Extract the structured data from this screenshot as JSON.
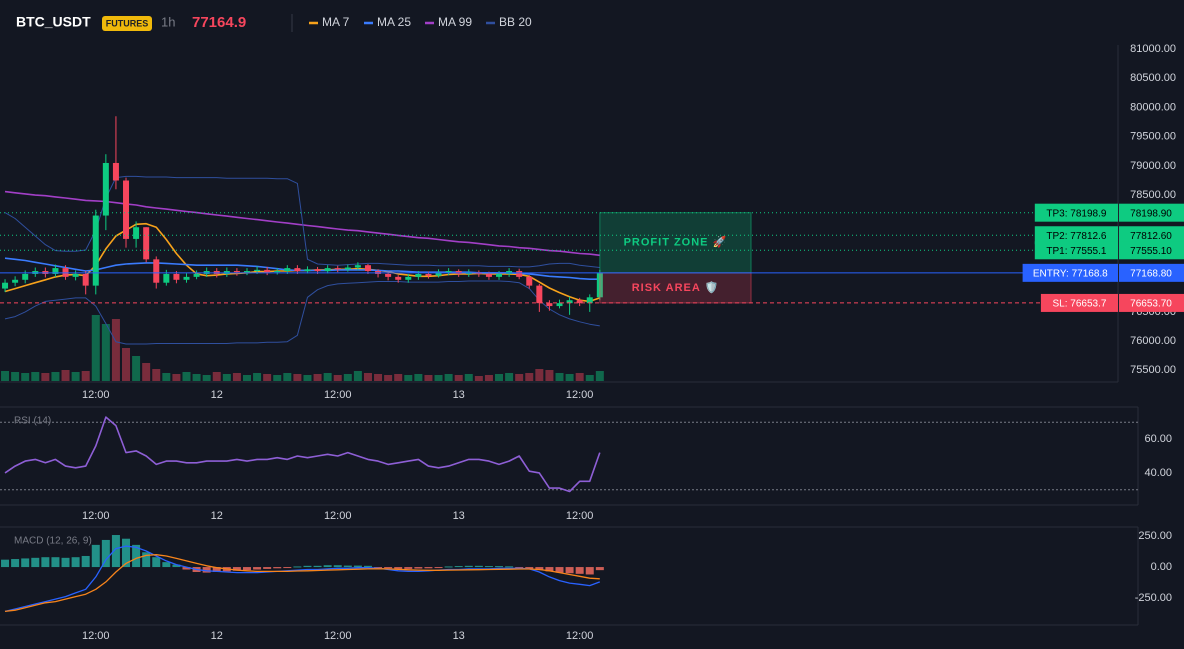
{
  "header": {
    "symbol": "BTC_USDT",
    "badge": "FUTURES",
    "interval": "1h",
    "price": "77164.9"
  },
  "chart_data": [
    {
      "type": "candlestick",
      "up_color": "#0ecb81",
      "down_color": "#f6465d",
      "xlim": [
        -0.5,
        110.4
      ],
      "xticks": [
        {
          "value": 9,
          "label": "12:00"
        },
        {
          "value": 21,
          "label": "12"
        },
        {
          "value": 33,
          "label": "12:00"
        },
        {
          "value": 45,
          "label": "13"
        },
        {
          "value": 57,
          "label": "12:00"
        }
      ],
      "ylim": [
        75300,
        81070
      ],
      "yticks": [
        {
          "value": 75500,
          "label": "75500.00"
        },
        {
          "value": 76000,
          "label": "76000.00"
        },
        {
          "value": 76500,
          "label": "76500.00"
        },
        {
          "value": 78500,
          "label": "78500.00"
        },
        {
          "value": 79000,
          "label": "79000.00"
        },
        {
          "value": 79500,
          "label": "79500.00"
        },
        {
          "value": 80000,
          "label": "80000.00"
        },
        {
          "value": 80500,
          "label": "80500.00"
        },
        {
          "value": 81000,
          "label": "81000.00"
        }
      ],
      "open": [
        76900,
        77000,
        77050,
        77150,
        77200,
        77150,
        77250,
        77100,
        77150,
        76950,
        78150,
        79050,
        78750,
        77750,
        77950,
        77400,
        77000,
        77150,
        77050,
        77100,
        77150,
        77200,
        77150,
        77200,
        77180,
        77200,
        77220,
        77180,
        77200,
        77250,
        77200,
        77230,
        77200,
        77250,
        77230,
        77260,
        77300,
        77200,
        77150,
        77100,
        77050,
        77100,
        77150,
        77120,
        77180,
        77200,
        77150,
        77180,
        77150,
        77100,
        77150,
        77200,
        77100,
        76950,
        76650,
        76600,
        76650,
        76700,
        76650,
        76750
      ],
      "high": [
        77060,
        77110,
        77210,
        77260,
        77260,
        77310,
        77300,
        77210,
        77200,
        78250,
        79200,
        79850,
        78800,
        78050,
        77950,
        77450,
        77220,
        77200,
        77160,
        77210,
        77260,
        77250,
        77260,
        77250,
        77250,
        77280,
        77270,
        77250,
        77300,
        77300,
        77280,
        77270,
        77300,
        77290,
        77310,
        77350,
        77320,
        77230,
        77180,
        77130,
        77150,
        77200,
        77190,
        77230,
        77250,
        77230,
        77230,
        77210,
        77190,
        77200,
        77250,
        77240,
        77130,
        76980,
        76700,
        76710,
        76760,
        76740,
        76800,
        77220
      ],
      "low": [
        76840,
        76940,
        76990,
        77100,
        77090,
        77100,
        77050,
        77040,
        76800,
        76800,
        77900,
        78600,
        77600,
        77600,
        77350,
        76900,
        76950,
        76990,
        77000,
        77060,
        77100,
        77090,
        77100,
        77120,
        77130,
        77150,
        77130,
        77140,
        77150,
        77150,
        77160,
        77150,
        77160,
        77180,
        77190,
        77210,
        77150,
        77090,
        77040,
        77000,
        77000,
        77050,
        77070,
        77090,
        77130,
        77100,
        77100,
        77100,
        77050,
        77050,
        77100,
        77060,
        76900,
        76500,
        76520,
        76560,
        76450,
        76600,
        76500,
        76700
      ],
      "close": [
        77000,
        77050,
        77150,
        77200,
        77150,
        77250,
        77100,
        77150,
        76950,
        78150,
        79050,
        78750,
        77750,
        77950,
        77400,
        77000,
        77150,
        77050,
        77100,
        77150,
        77200,
        77150,
        77200,
        77180,
        77200,
        77220,
        77180,
        77200,
        77250,
        77200,
        77230,
        77200,
        77250,
        77230,
        77260,
        77300,
        77200,
        77150,
        77100,
        77050,
        77100,
        77150,
        77120,
        77180,
        77200,
        77150,
        77180,
        77150,
        77100,
        77150,
        77200,
        77100,
        76950,
        76650,
        76600,
        76650,
        76700,
        76650,
        76750,
        77164.9
      ],
      "volume": [
        10,
        9,
        8,
        9,
        8,
        9,
        11,
        9,
        10,
        66,
        57,
        62,
        33,
        25,
        18,
        12,
        8,
        7,
        9,
        7,
        6,
        9,
        7,
        8,
        6,
        8,
        7,
        6,
        8,
        7,
        6,
        7,
        8,
        6,
        7,
        10,
        8,
        7,
        6,
        7,
        6,
        7,
        6,
        6,
        7,
        6,
        7,
        5,
        6,
        7,
        8,
        7,
        8,
        12,
        11,
        8,
        7,
        8,
        6,
        10
      ],
      "series": [
        {
          "name": "MA 7",
          "color": "#f7a21b",
          "values": [
            76850,
            76900,
            76950,
            77000,
            77050,
            77100,
            77130,
            77140,
            77120,
            77300,
            77580,
            77800,
            77900,
            78000,
            78010,
            77950,
            77740,
            77500,
            77300,
            77150,
            77120,
            77130,
            77150,
            77160,
            77170,
            77190,
            77190,
            77200,
            77200,
            77210,
            77210,
            77220,
            77220,
            77230,
            77230,
            77240,
            77230,
            77210,
            77190,
            77150,
            77130,
            77110,
            77110,
            77120,
            77140,
            77150,
            77150,
            77160,
            77150,
            77150,
            77150,
            77140,
            77110,
            77010,
            76910,
            76830,
            76760,
            76700,
            76680,
            76740
          ]
        },
        {
          "name": "MA 25",
          "color": "#3a7bfd",
          "values": [
            77420,
            77400,
            77380,
            77350,
            77320,
            77290,
            77260,
            77230,
            77200,
            77220,
            77260,
            77300,
            77320,
            77330,
            77340,
            77340,
            77330,
            77320,
            77310,
            77300,
            77300,
            77300,
            77300,
            77300,
            77290,
            77280,
            77260,
            77240,
            77220,
            77210,
            77210,
            77210,
            77210,
            77220,
            77220,
            77220,
            77220,
            77210,
            77200,
            77200,
            77190,
            77180,
            77180,
            77180,
            77180,
            77180,
            77180,
            77170,
            77170,
            77170,
            77170,
            77160,
            77150,
            77130,
            77110,
            77100,
            77090,
            77070,
            77060,
            77060
          ]
        },
        {
          "name": "MA 99",
          "color": "#a23fc7",
          "values": [
            78560,
            78540,
            78520,
            78500,
            78490,
            78470,
            78450,
            78430,
            78410,
            78400,
            78390,
            78370,
            78350,
            78330,
            78300,
            78280,
            78260,
            78240,
            78220,
            78200,
            78180,
            78160,
            78140,
            78120,
            78100,
            78080,
            78060,
            78040,
            78020,
            78000,
            77980,
            77960,
            77940,
            77920,
            77900,
            77890,
            77870,
            77850,
            77830,
            77810,
            77790,
            77770,
            77760,
            77740,
            77720,
            77700,
            77690,
            77670,
            77650,
            77630,
            77620,
            77600,
            77590,
            77570,
            77550,
            77540,
            77520,
            77500,
            77490,
            77470
          ]
        },
        {
          "name": "BB 20",
          "color": "#2f4f9e",
          "upper": [
            78200,
            78100,
            77950,
            77800,
            77650,
            77550,
            77540,
            77540,
            77560,
            77900,
            78450,
            78800,
            78820,
            78820,
            78810,
            78810,
            78810,
            78800,
            78800,
            78800,
            78800,
            78800,
            78790,
            78790,
            78790,
            78790,
            78790,
            78780,
            78780,
            78700,
            77400,
            77320,
            77310,
            77300,
            77310,
            77320,
            77330,
            77330,
            77320,
            77310,
            77300,
            77300,
            77300,
            77290,
            77290,
            77290,
            77290,
            77290,
            77280,
            77280,
            77280,
            77270,
            77270,
            77290,
            77320,
            77330,
            77330,
            77300,
            77280,
            77260
          ],
          "lower": [
            76380,
            76420,
            76500,
            76600,
            76680,
            76700,
            76720,
            76740,
            76740,
            76600,
            76300,
            75990,
            75950,
            75950,
            75950,
            75960,
            75960,
            75960,
            75960,
            75960,
            75960,
            75960,
            75960,
            75970,
            75970,
            75970,
            75980,
            75980,
            75990,
            76100,
            76750,
            76880,
            76950,
            76980,
            76990,
            77000,
            77010,
            77020,
            77020,
            77020,
            77010,
            77010,
            77010,
            77010,
            77020,
            77020,
            77030,
            77030,
            77030,
            77030,
            77020,
            77000,
            76900,
            76700,
            76550,
            76450,
            76380,
            76330,
            76290,
            76260
          ]
        }
      ],
      "levels": [
        {
          "value": 78198.9,
          "label": "TP3: 78198.9",
          "axis_label": "78198.90",
          "color": "#0ecb81",
          "style": "dotted"
        },
        {
          "value": 77812.6,
          "label": "TP2: 77812.6",
          "axis_label": "77812.60",
          "color": "#0ecb81",
          "style": "dotted"
        },
        {
          "value": 77555.1,
          "label": "TP1: 77555.1",
          "axis_label": "77555.10",
          "color": "#0ecb81",
          "style": "dotted"
        },
        {
          "value": 77168.8,
          "label": "ENTRY: 77168.8",
          "axis_label": "77168.80",
          "color": "#2962ff",
          "style": "solid"
        },
        {
          "value": 76653.7,
          "label": "SL: 76653.7",
          "axis_label": "76653.70",
          "color": "#f6465d",
          "style": "dashed"
        }
      ],
      "zones": [
        {
          "label": "PROFIT ZONE 🚀",
          "from": 78198.9,
          "to": 77168.8,
          "color": "#0ecb81"
        },
        {
          "label": "RISK AREA 🛡️",
          "from": 77168.8,
          "to": 76653.7,
          "color": "#f6465d"
        }
      ]
    },
    {
      "type": "line",
      "title": "RSI (14)",
      "color": "#8e5fd6",
      "xlim": [
        -0.5,
        110.4
      ],
      "xticks": [
        {
          "value": 9,
          "label": "12:00"
        },
        {
          "value": 21,
          "label": "12"
        },
        {
          "value": 33,
          "label": "12:00"
        },
        {
          "value": 45,
          "label": "13"
        },
        {
          "value": 57,
          "label": "12:00"
        }
      ],
      "ylim": [
        21,
        79
      ],
      "yticks": [
        {
          "value": 40,
          "label": "40.00"
        },
        {
          "value": 60,
          "label": "60.00"
        }
      ],
      "guides": [
        70,
        30
      ],
      "values": [
        40,
        44,
        47,
        48,
        46,
        48,
        44,
        43,
        44,
        56,
        73,
        68,
        52,
        53,
        50,
        45,
        47,
        47,
        46,
        46,
        47,
        47,
        47,
        48,
        47,
        48,
        48,
        49,
        48,
        50,
        49,
        50,
        51,
        50,
        52,
        50,
        48,
        47,
        45,
        46,
        47,
        48,
        44,
        43,
        44,
        46,
        48,
        48,
        47,
        45,
        47,
        50,
        41,
        40,
        31,
        31,
        29,
        35,
        35,
        52
      ]
    },
    {
      "type": "macd",
      "title": "MACD (12, 26, 9)",
      "xlim": [
        -0.5,
        110.4
      ],
      "xticks": [
        {
          "value": 9,
          "label": "12:00"
        },
        {
          "value": 21,
          "label": "12"
        },
        {
          "value": 33,
          "label": "12:00"
        },
        {
          "value": 45,
          "label": "13"
        },
        {
          "value": 57,
          "label": "12:00"
        }
      ],
      "ylim": [
        -470,
        325
      ],
      "yticks": [
        {
          "value": -250,
          "label": "-250.00"
        },
        {
          "value": 0,
          "label": "0.00"
        },
        {
          "value": 250,
          "label": "250.00"
        }
      ],
      "series": [
        {
          "color": "#2962ff",
          "values": [
            -360,
            -340,
            -320,
            -300,
            -280,
            -260,
            -240,
            -210,
            -180,
            -80,
            60,
            150,
            170,
            160,
            130,
            90,
            50,
            20,
            0,
            -20,
            -30,
            -35,
            -40,
            -45,
            -45,
            -45,
            -40,
            -35,
            -30,
            -25,
            -20,
            -20,
            -15,
            -10,
            -10,
            -5,
            -5,
            -10,
            -20,
            -30,
            -35,
            -35,
            -30,
            -25,
            -20,
            -20,
            -15,
            -15,
            -15,
            -10,
            -10,
            -10,
            -15,
            -40,
            -80,
            -110,
            -130,
            -140,
            -150,
            -120
          ]
        },
        {
          "color": "#f7841b",
          "values": [
            -360,
            -350,
            -330,
            -310,
            -290,
            -280,
            -260,
            -240,
            -220,
            -180,
            -120,
            -40,
            30,
            70,
            95,
            100,
            90,
            70,
            50,
            30,
            10,
            -5,
            -15,
            -25,
            -30,
            -35,
            -35,
            -35,
            -35,
            -32,
            -30,
            -28,
            -25,
            -22,
            -20,
            -17,
            -15,
            -14,
            -15,
            -18,
            -22,
            -25,
            -26,
            -26,
            -25,
            -24,
            -22,
            -21,
            -20,
            -18,
            -17,
            -16,
            -16,
            -20,
            -30,
            -45,
            -60,
            -75,
            -90,
            -95
          ]
        }
      ],
      "histogram": {
        "up_color": "#26a69a",
        "down_color": "#ef6b5f",
        "values": [
          60,
          65,
          70,
          75,
          80,
          80,
          75,
          80,
          90,
          180,
          220,
          260,
          230,
          180,
          120,
          80,
          40,
          20,
          -20,
          -40,
          -45,
          -40,
          -35,
          -30,
          -25,
          -20,
          -15,
          -10,
          -5,
          5,
          10,
          10,
          15,
          15,
          12,
          12,
          10,
          -5,
          -10,
          -15,
          -15,
          -12,
          -10,
          -5,
          5,
          8,
          10,
          10,
          8,
          8,
          6,
          -8,
          -15,
          -25,
          -35,
          -45,
          -50,
          -55,
          -60,
          -25
        ]
      }
    }
  ]
}
